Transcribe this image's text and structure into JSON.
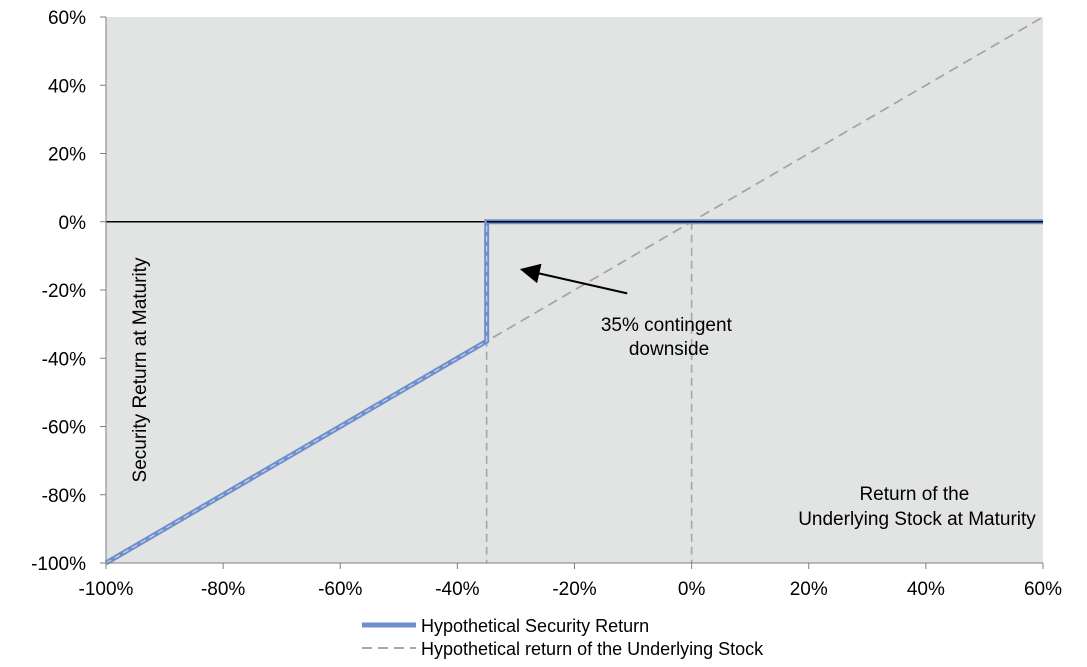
{
  "chart_data": {
    "type": "line",
    "title": "",
    "xlabel": "Return of the Underlying Stock at Maturity",
    "ylabel": "Security Return at Maturity",
    "xlim": [
      -100,
      60
    ],
    "ylim": [
      -100,
      60
    ],
    "x_ticks": [
      "-100%",
      "-80%",
      "-60%",
      "-40%",
      "-20%",
      "0%",
      "20%",
      "40%",
      "60%"
    ],
    "y_ticks": [
      "60%",
      "40%",
      "20%",
      "0%",
      "-20%",
      "-40%",
      "-60%",
      "-80%",
      "-100%"
    ],
    "x_tick_values": [
      -100,
      -80,
      -60,
      -40,
      -20,
      0,
      20,
      40,
      60
    ],
    "y_tick_values": [
      60,
      40,
      20,
      0,
      -20,
      -40,
      -60,
      -80,
      -100
    ],
    "grid": false,
    "legend_position": "bottom-center",
    "background_color": "#e2e3e3",
    "series": [
      {
        "name": "Hypothetical Security Return",
        "color": "#6d8fcb",
        "style": "solid",
        "x": [
          -100,
          -35,
          -35,
          60
        ],
        "y": [
          -100,
          -35,
          0,
          0
        ]
      },
      {
        "name": "Hypothetical return of the Underlying Stock",
        "color": "#a6a6a6",
        "style": "dashed",
        "x": [
          -100,
          60
        ],
        "y": [
          -100,
          60
        ]
      }
    ],
    "reference_lines": [
      {
        "orientation": "horizontal",
        "value": 0,
        "color": "#000000",
        "style": "solid"
      },
      {
        "orientation": "vertical",
        "value": -35,
        "color": "#a6a6a6",
        "style": "dashed"
      },
      {
        "orientation": "vertical",
        "value": 0,
        "color": "#a6a6a6",
        "style": "dashed"
      }
    ],
    "annotations": [
      {
        "lines": [
          "35% contingent",
          "downside"
        ],
        "arrow_from": [
          -11,
          -21
        ],
        "arrow_to": [
          -29,
          -14
        ]
      }
    ],
    "xlabel_lines": [
      "Return of the",
      "Underlying Stock at Maturity"
    ]
  }
}
